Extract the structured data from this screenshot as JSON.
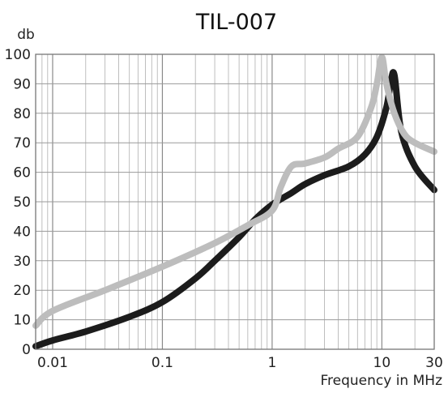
{
  "chart_data": {
    "type": "line",
    "title": "TIL-007",
    "ylabel": "db",
    "xlabel": "Frequency in MHz",
    "x_scale": "log",
    "xlim": [
      0.007,
      30
    ],
    "ylim": [
      0,
      100
    ],
    "grid": true,
    "y_ticks": [
      "0",
      "10",
      "20",
      "30",
      "40",
      "50",
      "60",
      "70",
      "80",
      "90",
      "100"
    ],
    "x_ticks": [
      {
        "value": 0.01,
        "label": "0.01"
      },
      {
        "value": 0.1,
        "label": "0.1"
      },
      {
        "value": 1,
        "label": "1"
      },
      {
        "value": 10,
        "label": "10"
      },
      {
        "value": 30,
        "label": "30"
      }
    ],
    "series": [
      {
        "color": "#1c1c1c",
        "x": [
          0.007,
          0.01,
          0.02,
          0.05,
          0.1,
          0.2,
          0.3,
          0.5,
          0.7,
          1,
          1.5,
          2,
          3,
          5,
          7,
          9,
          11,
          12,
          13,
          15,
          20,
          30
        ],
        "y": [
          1,
          3,
          6,
          11,
          16,
          24,
          30,
          38,
          44,
          49,
          53,
          56,
          59,
          62,
          66,
          72,
          82,
          90,
          93,
          74,
          62,
          54
        ]
      },
      {
        "color": "#bdbdbd",
        "x": [
          0.007,
          0.01,
          0.03,
          0.1,
          0.3,
          0.6,
          1,
          1.2,
          1.5,
          2,
          3,
          4,
          6,
          8,
          9,
          10,
          11,
          13,
          16,
          20,
          30
        ],
        "y": [
          8,
          13,
          20,
          28,
          36,
          42,
          47,
          55,
          62,
          63,
          65,
          68,
          72,
          82,
          90,
          99,
          90,
          80,
          73,
          70,
          67
        ]
      }
    ]
  }
}
